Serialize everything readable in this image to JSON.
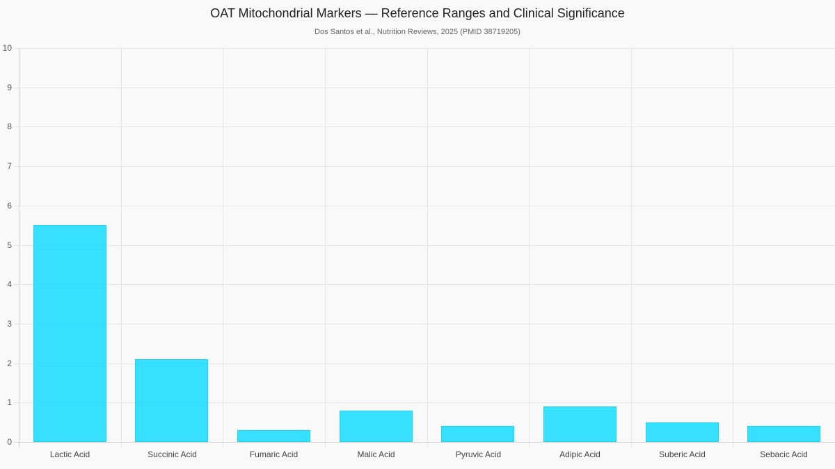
{
  "chart_data": {
    "type": "bar",
    "title": "OAT Mitochondrial Markers — Reference Ranges and Clinical Significance",
    "subtitle": "Dos Santos et al., Nutrition Reviews, 2025 (PMID 38719205)",
    "categories": [
      "Lactic Acid",
      "Succinic Acid",
      "Fumaric Acid",
      "Malic Acid",
      "Pyruvic Acid",
      "Adipic Acid",
      "Suberic Acid",
      "Sebacic Acid"
    ],
    "values": [
      5.5,
      2.1,
      0.3,
      0.8,
      0.4,
      0.9,
      0.5,
      0.4
    ],
    "xlabel": "",
    "ylabel": "",
    "ylim": [
      0,
      10
    ],
    "yticks": [
      "0",
      "1",
      "2",
      "3",
      "4",
      "5",
      "6",
      "7",
      "8",
      "9",
      "10"
    ],
    "grid": true,
    "legend": null,
    "bar_color": "#33e1fc",
    "bar_border_color": "#1ad6f5"
  }
}
